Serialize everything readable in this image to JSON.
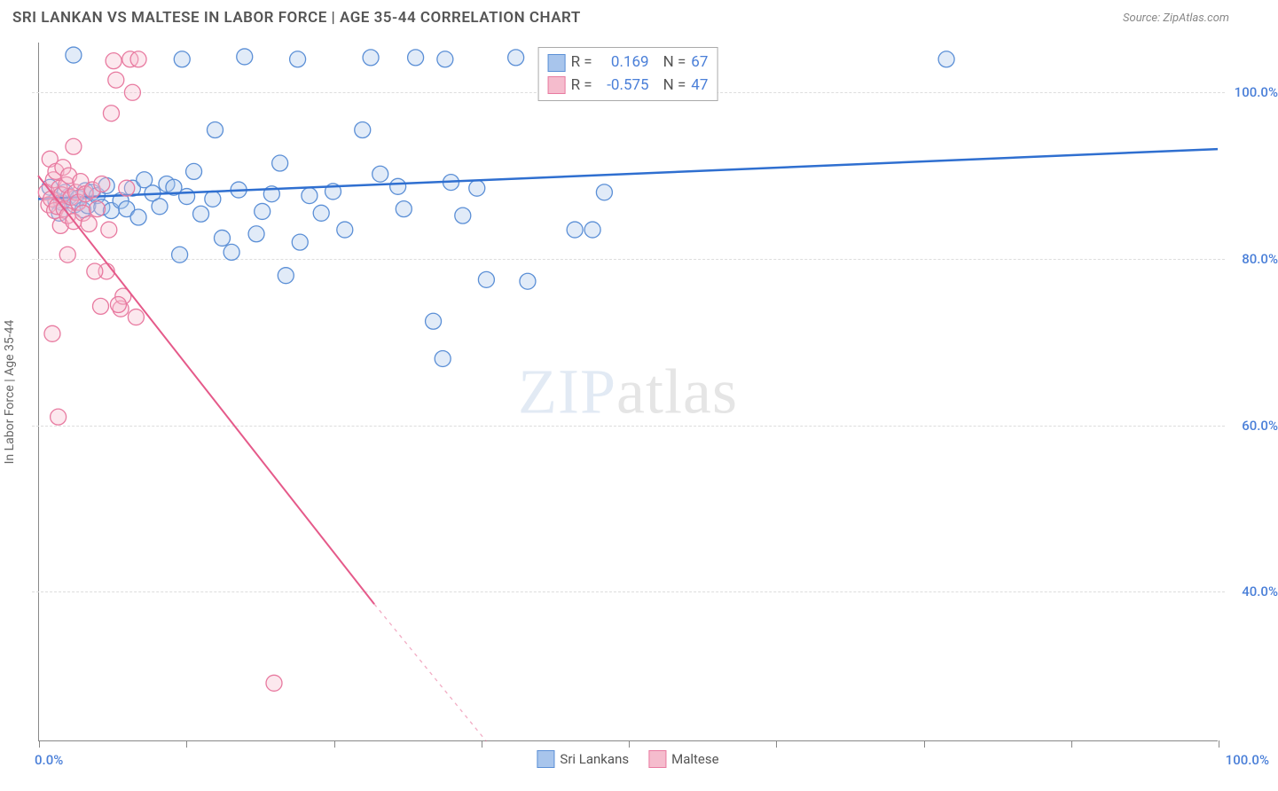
{
  "title": "SRI LANKAN VS MALTESE IN LABOR FORCE | AGE 35-44 CORRELATION CHART",
  "source": "Source: ZipAtlas.com",
  "ylabel": "In Labor Force | Age 35-44",
  "watermark_a": "ZIP",
  "watermark_b": "atlas",
  "chart": {
    "type": "scatter",
    "xlim": [
      0,
      100
    ],
    "ylim": [
      22,
      106
    ],
    "xtick_positions": [
      0,
      12.5,
      25,
      37.5,
      50,
      62.5,
      75,
      87.5,
      100
    ],
    "xtick_labels": {
      "first": "0.0%",
      "last": "100.0%"
    },
    "ytick_grid": [
      40,
      60,
      80,
      100
    ],
    "ytick_labels": [
      "40.0%",
      "60.0%",
      "80.0%",
      "100.0%"
    ],
    "axis_label_color": "#4a7fd8",
    "grid_color": "#dddddd",
    "marker_radius": 9,
    "series": [
      {
        "name": "Sri Lankans",
        "color_fill": "#a8c5ec",
        "color_stroke": "#5b8fd6",
        "R": "0.169",
        "N": "67",
        "regression": {
          "x1": 0,
          "y1": 87.2,
          "x2": 100,
          "y2": 93.2,
          "color": "#2f6fd0",
          "width": 2.5
        },
        "points": [
          [
            1.0,
            88.6
          ],
          [
            1.5,
            87.0
          ],
          [
            1.8,
            85.5
          ],
          [
            2.0,
            86.8
          ],
          [
            2.3,
            88.0
          ],
          [
            2.6,
            87.5
          ],
          [
            3.0,
            104.5
          ],
          [
            3.1,
            86.5
          ],
          [
            3.4,
            87.3
          ],
          [
            3.8,
            85.9
          ],
          [
            4.0,
            88.2
          ],
          [
            4.2,
            86.4
          ],
          [
            4.6,
            88.0
          ],
          [
            5.0,
            87.6
          ],
          [
            5.4,
            86.2
          ],
          [
            5.8,
            88.8
          ],
          [
            6.2,
            85.8
          ],
          [
            7.0,
            87.0
          ],
          [
            7.5,
            86.0
          ],
          [
            8.0,
            88.5
          ],
          [
            8.5,
            85.0
          ],
          [
            9.0,
            89.5
          ],
          [
            9.7,
            87.9
          ],
          [
            10.3,
            86.3
          ],
          [
            10.9,
            89.0
          ],
          [
            11.5,
            88.6
          ],
          [
            12.0,
            80.5
          ],
          [
            12.2,
            104.0
          ],
          [
            12.6,
            87.5
          ],
          [
            13.2,
            90.5
          ],
          [
            13.8,
            85.4
          ],
          [
            14.8,
            87.2
          ],
          [
            15.0,
            95.5
          ],
          [
            15.6,
            82.5
          ],
          [
            16.4,
            80.8
          ],
          [
            17.0,
            88.3
          ],
          [
            17.5,
            104.3
          ],
          [
            18.5,
            83.0
          ],
          [
            19.0,
            85.7
          ],
          [
            19.8,
            87.8
          ],
          [
            20.5,
            91.5
          ],
          [
            21.0,
            78.0
          ],
          [
            22.0,
            104.0
          ],
          [
            22.2,
            82.0
          ],
          [
            23.0,
            87.6
          ],
          [
            24.0,
            85.5
          ],
          [
            25.0,
            88.1
          ],
          [
            26.0,
            83.5
          ],
          [
            27.5,
            95.5
          ],
          [
            28.2,
            104.2
          ],
          [
            29.0,
            90.2
          ],
          [
            30.5,
            88.7
          ],
          [
            31.0,
            86.0
          ],
          [
            32.0,
            104.2
          ],
          [
            33.5,
            72.5
          ],
          [
            34.3,
            68.0
          ],
          [
            34.5,
            104.0
          ],
          [
            35.0,
            89.2
          ],
          [
            36.0,
            85.2
          ],
          [
            37.2,
            88.5
          ],
          [
            38.0,
            77.5
          ],
          [
            40.5,
            104.2
          ],
          [
            41.5,
            77.3
          ],
          [
            45.5,
            83.5
          ],
          [
            47.0,
            83.5
          ],
          [
            48.0,
            88.0
          ],
          [
            77.0,
            104.0
          ]
        ]
      },
      {
        "name": "Maltese",
        "color_fill": "#f5bccd",
        "color_stroke": "#e87aa0",
        "R": "-0.575",
        "N": "47",
        "regression": {
          "x1": 0,
          "y1": 90.0,
          "x2": 28.5,
          "y2": 38.5,
          "color": "#e55a8a",
          "width": 2,
          "dash_from_x": 28.5,
          "dash_to_x": 38.0,
          "dash_to_y": 22.0
        },
        "points": [
          [
            0.7,
            88.0
          ],
          [
            0.9,
            86.5
          ],
          [
            1.0,
            92.0
          ],
          [
            1.1,
            87.2
          ],
          [
            1.3,
            89.5
          ],
          [
            1.4,
            85.8
          ],
          [
            1.5,
            90.5
          ],
          [
            1.6,
            86.3
          ],
          [
            1.8,
            88.5
          ],
          [
            1.9,
            84.0
          ],
          [
            2.0,
            87.7
          ],
          [
            2.1,
            91.0
          ],
          [
            2.2,
            86.0
          ],
          [
            2.4,
            88.9
          ],
          [
            2.5,
            85.2
          ],
          [
            2.6,
            90.0
          ],
          [
            2.8,
            87.4
          ],
          [
            3.0,
            84.5
          ],
          [
            3.2,
            88.0
          ],
          [
            3.4,
            86.8
          ],
          [
            3.6,
            89.3
          ],
          [
            3.8,
            85.5
          ],
          [
            4.0,
            87.8
          ],
          [
            4.3,
            84.2
          ],
          [
            4.6,
            88.3
          ],
          [
            5.0,
            86.0
          ],
          [
            5.4,
            89.0
          ],
          [
            5.8,
            78.5
          ],
          [
            6.0,
            83.5
          ],
          [
            6.2,
            97.5
          ],
          [
            6.4,
            103.8
          ],
          [
            6.6,
            101.5
          ],
          [
            7.0,
            74.0
          ],
          [
            7.2,
            75.5
          ],
          [
            7.5,
            88.5
          ],
          [
            7.8,
            104.0
          ],
          [
            8.0,
            100.0
          ],
          [
            8.3,
            73.0
          ],
          [
            8.5,
            104.0
          ],
          [
            2.5,
            80.5
          ],
          [
            3.0,
            93.5
          ],
          [
            1.2,
            71.0
          ],
          [
            1.7,
            61.0
          ],
          [
            4.8,
            78.5
          ],
          [
            5.3,
            74.3
          ],
          [
            6.8,
            74.5
          ],
          [
            20.0,
            29.0
          ]
        ]
      }
    ]
  },
  "legend_top_labels": {
    "R": "R =",
    "N": "N ="
  },
  "legend_bottom": [
    "Sri Lankans",
    "Maltese"
  ]
}
